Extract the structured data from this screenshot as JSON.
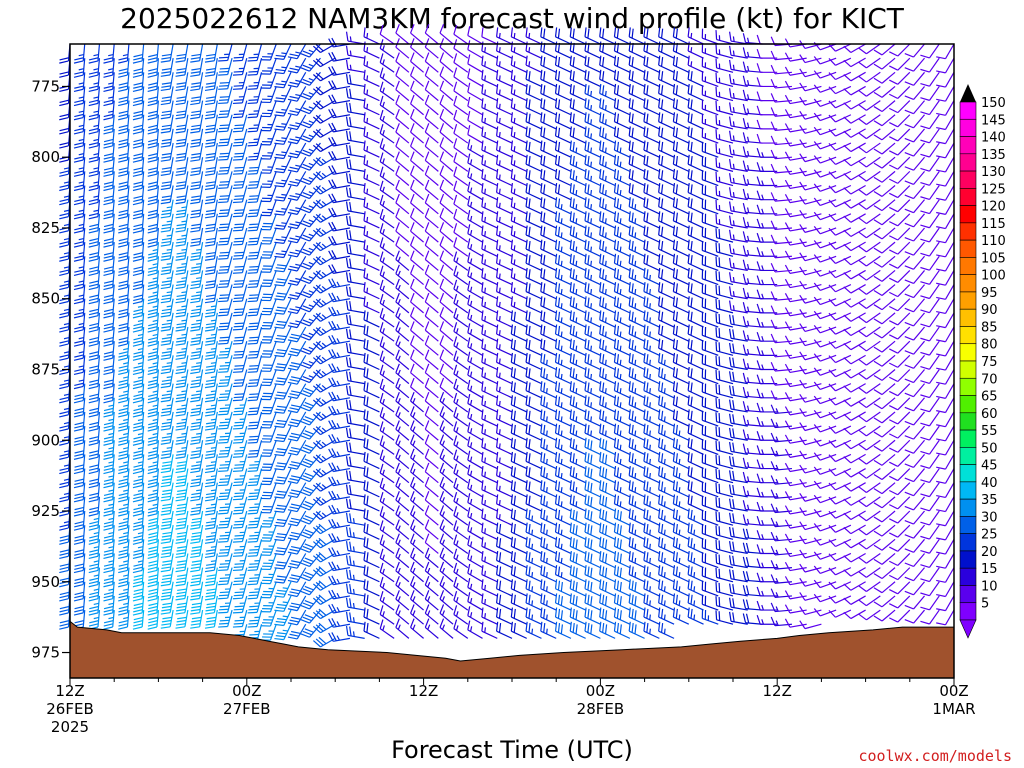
{
  "title": "2025022612 NAM3KM forecast wind profile (kt) for KICT",
  "xlabel": "Forecast Time (UTC)",
  "credit": "coolwx.com/models",
  "colors": {
    "terrain": "#a0522d",
    "barb_scale": [
      {
        "kt": 5,
        "color": "#7f00ff"
      },
      {
        "kt": 10,
        "color": "#5a00ee"
      },
      {
        "kt": 15,
        "color": "#2a00dd"
      },
      {
        "kt": 20,
        "color": "#0010cc"
      },
      {
        "kt": 25,
        "color": "#0035dd"
      },
      {
        "kt": 30,
        "color": "#0060e8"
      },
      {
        "kt": 35,
        "color": "#0090f0"
      },
      {
        "kt": 40,
        "color": "#00b8f5"
      },
      {
        "kt": 45,
        "color": "#00e0d8"
      },
      {
        "kt": 50,
        "color": "#00f0a0"
      },
      {
        "kt": 55,
        "color": "#00f060"
      },
      {
        "kt": 60,
        "color": "#20e020"
      },
      {
        "kt": 65,
        "color": "#50f000"
      },
      {
        "kt": 70,
        "color": "#90ff00"
      },
      {
        "kt": 75,
        "color": "#d0ff00"
      },
      {
        "kt": 80,
        "color": "#f8ff00"
      },
      {
        "kt": 85,
        "color": "#ffe000"
      },
      {
        "kt": 90,
        "color": "#ffc000"
      },
      {
        "kt": 95,
        "color": "#ffa000"
      },
      {
        "kt": 100,
        "color": "#ff8c00"
      },
      {
        "kt": 105,
        "color": "#ff7800"
      },
      {
        "kt": 110,
        "color": "#ff5800"
      },
      {
        "kt": 115,
        "color": "#ff3000"
      },
      {
        "kt": 120,
        "color": "#ff0000"
      },
      {
        "kt": 125,
        "color": "#ff0030"
      },
      {
        "kt": 130,
        "color": "#ff0060"
      },
      {
        "kt": 135,
        "color": "#ff0090"
      },
      {
        "kt": 140,
        "color": "#ff00b8"
      },
      {
        "kt": 145,
        "color": "#ff00e0"
      },
      {
        "kt": 150,
        "color": "#ff00ff"
      }
    ]
  },
  "colorbar_labels": [
    "150",
    "145",
    "140",
    "135",
    "130",
    "125",
    "120",
    "115",
    "110",
    "105",
    "100",
    "95",
    "90",
    "85",
    "80",
    "75",
    "70",
    "65",
    "60",
    "55",
    "50",
    "45",
    "40",
    "35",
    "30",
    "25",
    "20",
    "15",
    "10",
    "5"
  ],
  "chart_data": {
    "type": "wind-barb-profile",
    "title": "2025022612 NAM3KM forecast wind profile (kt) for KICT",
    "xlabel": "Forecast Time (UTC)",
    "ylabel": "",
    "units": "kt",
    "x_range_hours": [
      0,
      60
    ],
    "x_ticks": [
      {
        "hour": 0,
        "label": "12Z",
        "sub": [
          "26FEB",
          "2025"
        ]
      },
      {
        "hour": 12,
        "label": "00Z",
        "sub": [
          "27FEB"
        ]
      },
      {
        "hour": 24,
        "label": "12Z",
        "sub": []
      },
      {
        "hour": 36,
        "label": "00Z",
        "sub": [
          "28FEB"
        ]
      },
      {
        "hour": 48,
        "label": "12Z",
        "sub": []
      },
      {
        "hour": 60,
        "label": "00Z",
        "sub": [
          "1MAR"
        ]
      }
    ],
    "y_axis_pressure_hpa": {
      "top": 760,
      "bottom": 984,
      "inverted": true
    },
    "y_ticks": [
      775,
      800,
      825,
      850,
      875,
      900,
      925,
      950,
      975
    ],
    "surface_pressure": [
      {
        "hour": 0,
        "hpa": 964
      },
      {
        "hour": 0.5,
        "hpa": 966
      },
      {
        "hour": 2.5,
        "hpa": 967
      },
      {
        "hour": 3.5,
        "hpa": 968
      },
      {
        "hour": 9.5,
        "hpa": 968
      },
      {
        "hour": 11.5,
        "hpa": 969
      },
      {
        "hour": 12.5,
        "hpa": 970
      },
      {
        "hour": 13.5,
        "hpa": 971
      },
      {
        "hour": 14.5,
        "hpa": 972
      },
      {
        "hour": 15.5,
        "hpa": 973
      },
      {
        "hour": 17.5,
        "hpa": 974
      },
      {
        "hour": 21.5,
        "hpa": 975
      },
      {
        "hour": 23.5,
        "hpa": 976
      },
      {
        "hour": 25.5,
        "hpa": 977
      },
      {
        "hour": 26.5,
        "hpa": 978
      },
      {
        "hour": 28.5,
        "hpa": 977
      },
      {
        "hour": 30.5,
        "hpa": 976
      },
      {
        "hour": 33.5,
        "hpa": 975
      },
      {
        "hour": 37.5,
        "hpa": 974
      },
      {
        "hour": 41.5,
        "hpa": 973
      },
      {
        "hour": 43.5,
        "hpa": 972
      },
      {
        "hour": 45.5,
        "hpa": 971
      },
      {
        "hour": 48,
        "hpa": 970
      },
      {
        "hour": 49.5,
        "hpa": 969
      },
      {
        "hour": 51.5,
        "hpa": 968
      },
      {
        "hour": 54.5,
        "hpa": 967
      },
      {
        "hour": 56.5,
        "hpa": 966
      },
      {
        "hour": 58.5,
        "hpa": 966
      },
      {
        "hour": 60,
        "hpa": 966
      }
    ],
    "barb_levels_hpa": [
      760,
      765,
      770,
      775,
      780,
      785,
      790,
      795,
      800,
      805,
      810,
      815,
      820,
      825,
      830,
      835,
      840,
      845,
      850,
      855,
      860,
      865,
      870,
      875,
      880,
      885,
      890,
      895,
      900,
      905,
      910,
      915,
      920,
      925,
      930,
      935,
      940,
      945,
      950,
      955,
      960,
      965,
      970
    ],
    "barb_hours": [
      0,
      1,
      2,
      3,
      4,
      5,
      6,
      7,
      8,
      9,
      10,
      11,
      12,
      13,
      14,
      15,
      16,
      17,
      18,
      19,
      20,
      21,
      22,
      23,
      24,
      25,
      26,
      27,
      28,
      29,
      30,
      31,
      32,
      33,
      34,
      35,
      36,
      37,
      38,
      39,
      40,
      41,
      42,
      43,
      44,
      45,
      46,
      47,
      48,
      49,
      50,
      51,
      52,
      53,
      54,
      55,
      56,
      57,
      58,
      59,
      60
    ],
    "barb_speed_kt_by_hour": [
      27,
      29,
      32,
      34,
      35,
      36,
      37,
      38,
      38,
      37,
      36,
      35,
      34,
      33,
      32,
      31,
      30,
      29,
      27,
      25,
      22,
      19,
      16,
      14,
      13,
      12,
      13,
      14,
      15,
      16,
      17,
      19,
      22,
      24,
      26,
      27,
      28,
      28,
      27,
      26,
      25,
      24,
      23,
      22,
      21,
      20,
      19,
      17,
      15,
      13,
      11,
      10,
      10,
      10,
      10,
      10,
      10,
      10,
      10,
      10,
      10
    ],
    "barb_direction_deg_by_hour": [
      185,
      185,
      185,
      185,
      185,
      185,
      185,
      190,
      190,
      190,
      190,
      195,
      195,
      195,
      200,
      205,
      210,
      220,
      240,
      260,
      280,
      295,
      305,
      310,
      310,
      310,
      310,
      305,
      300,
      295,
      295,
      295,
      295,
      295,
      295,
      295,
      295,
      295,
      295,
      295,
      295,
      295,
      295,
      295,
      290,
      285,
      280,
      275,
      270,
      265,
      260,
      255,
      250,
      245,
      240,
      235,
      230,
      225,
      220,
      215,
      210
    ],
    "note": "Hourly wind barbs at 5 hPa spacing from top to surface; each barb colored by speed per colorbar."
  }
}
